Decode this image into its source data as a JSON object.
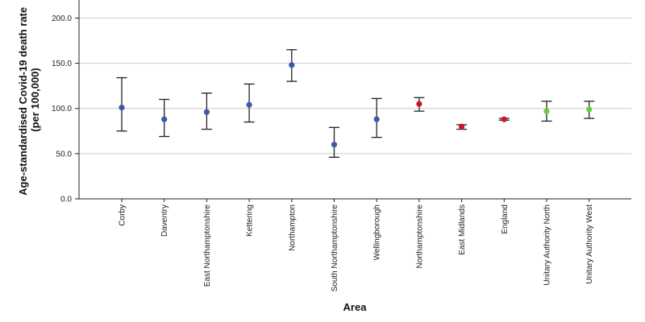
{
  "chart_data": {
    "type": "scatter",
    "subtype": "error-bar",
    "title": "",
    "xlabel": "Area",
    "ylabel_line1": "Age-standardised Covid-19 death rate",
    "ylabel_line2": "(per 100,000)",
    "ylim": [
      0,
      220
    ],
    "yticks": [
      0,
      50,
      100,
      150,
      200
    ],
    "ytick_labels": [
      "0.0",
      "50.0",
      "100.0",
      "150.0",
      "200.0"
    ],
    "grid": "horizontal",
    "colors": {
      "district": "#3d5aa8",
      "county_region_nation": "#cc1133",
      "unitary": "#6ec844",
      "whisker": "#222222",
      "grid": "#cccccc",
      "axis": "#222222"
    },
    "categories": [
      {
        "label": "Corby",
        "value": 101,
        "lower": 75,
        "upper": 134,
        "group": "district"
      },
      {
        "label": "Daventry",
        "value": 88,
        "lower": 69,
        "upper": 110,
        "group": "district"
      },
      {
        "label": "East Northamptonshire",
        "value": 96,
        "lower": 77,
        "upper": 117,
        "group": "district"
      },
      {
        "label": "Kettering",
        "value": 104,
        "lower": 85,
        "upper": 127,
        "group": "district"
      },
      {
        "label": "Northampton",
        "value": 148,
        "lower": 130,
        "upper": 165,
        "group": "district"
      },
      {
        "label": "South Northamptonshire",
        "value": 60,
        "lower": 46,
        "upper": 79,
        "group": "district"
      },
      {
        "label": "Wellingborough",
        "value": 88,
        "lower": 68,
        "upper": 111,
        "group": "district"
      },
      {
        "label": "Northamptonshire",
        "value": 105,
        "lower": 97,
        "upper": 112,
        "group": "county_region_nation"
      },
      {
        "label": "East Midlands",
        "value": 80,
        "lower": 77,
        "upper": 82,
        "group": "county_region_nation"
      },
      {
        "label": "England",
        "value": 88,
        "lower": 87,
        "upper": 89,
        "group": "county_region_nation"
      },
      {
        "label": "Unitary Authority North",
        "value": 97,
        "lower": 86,
        "upper": 108,
        "group": "unitary"
      },
      {
        "label": "Unitary Authority West",
        "value": 99,
        "lower": 89,
        "upper": 108,
        "group": "unitary"
      }
    ]
  }
}
